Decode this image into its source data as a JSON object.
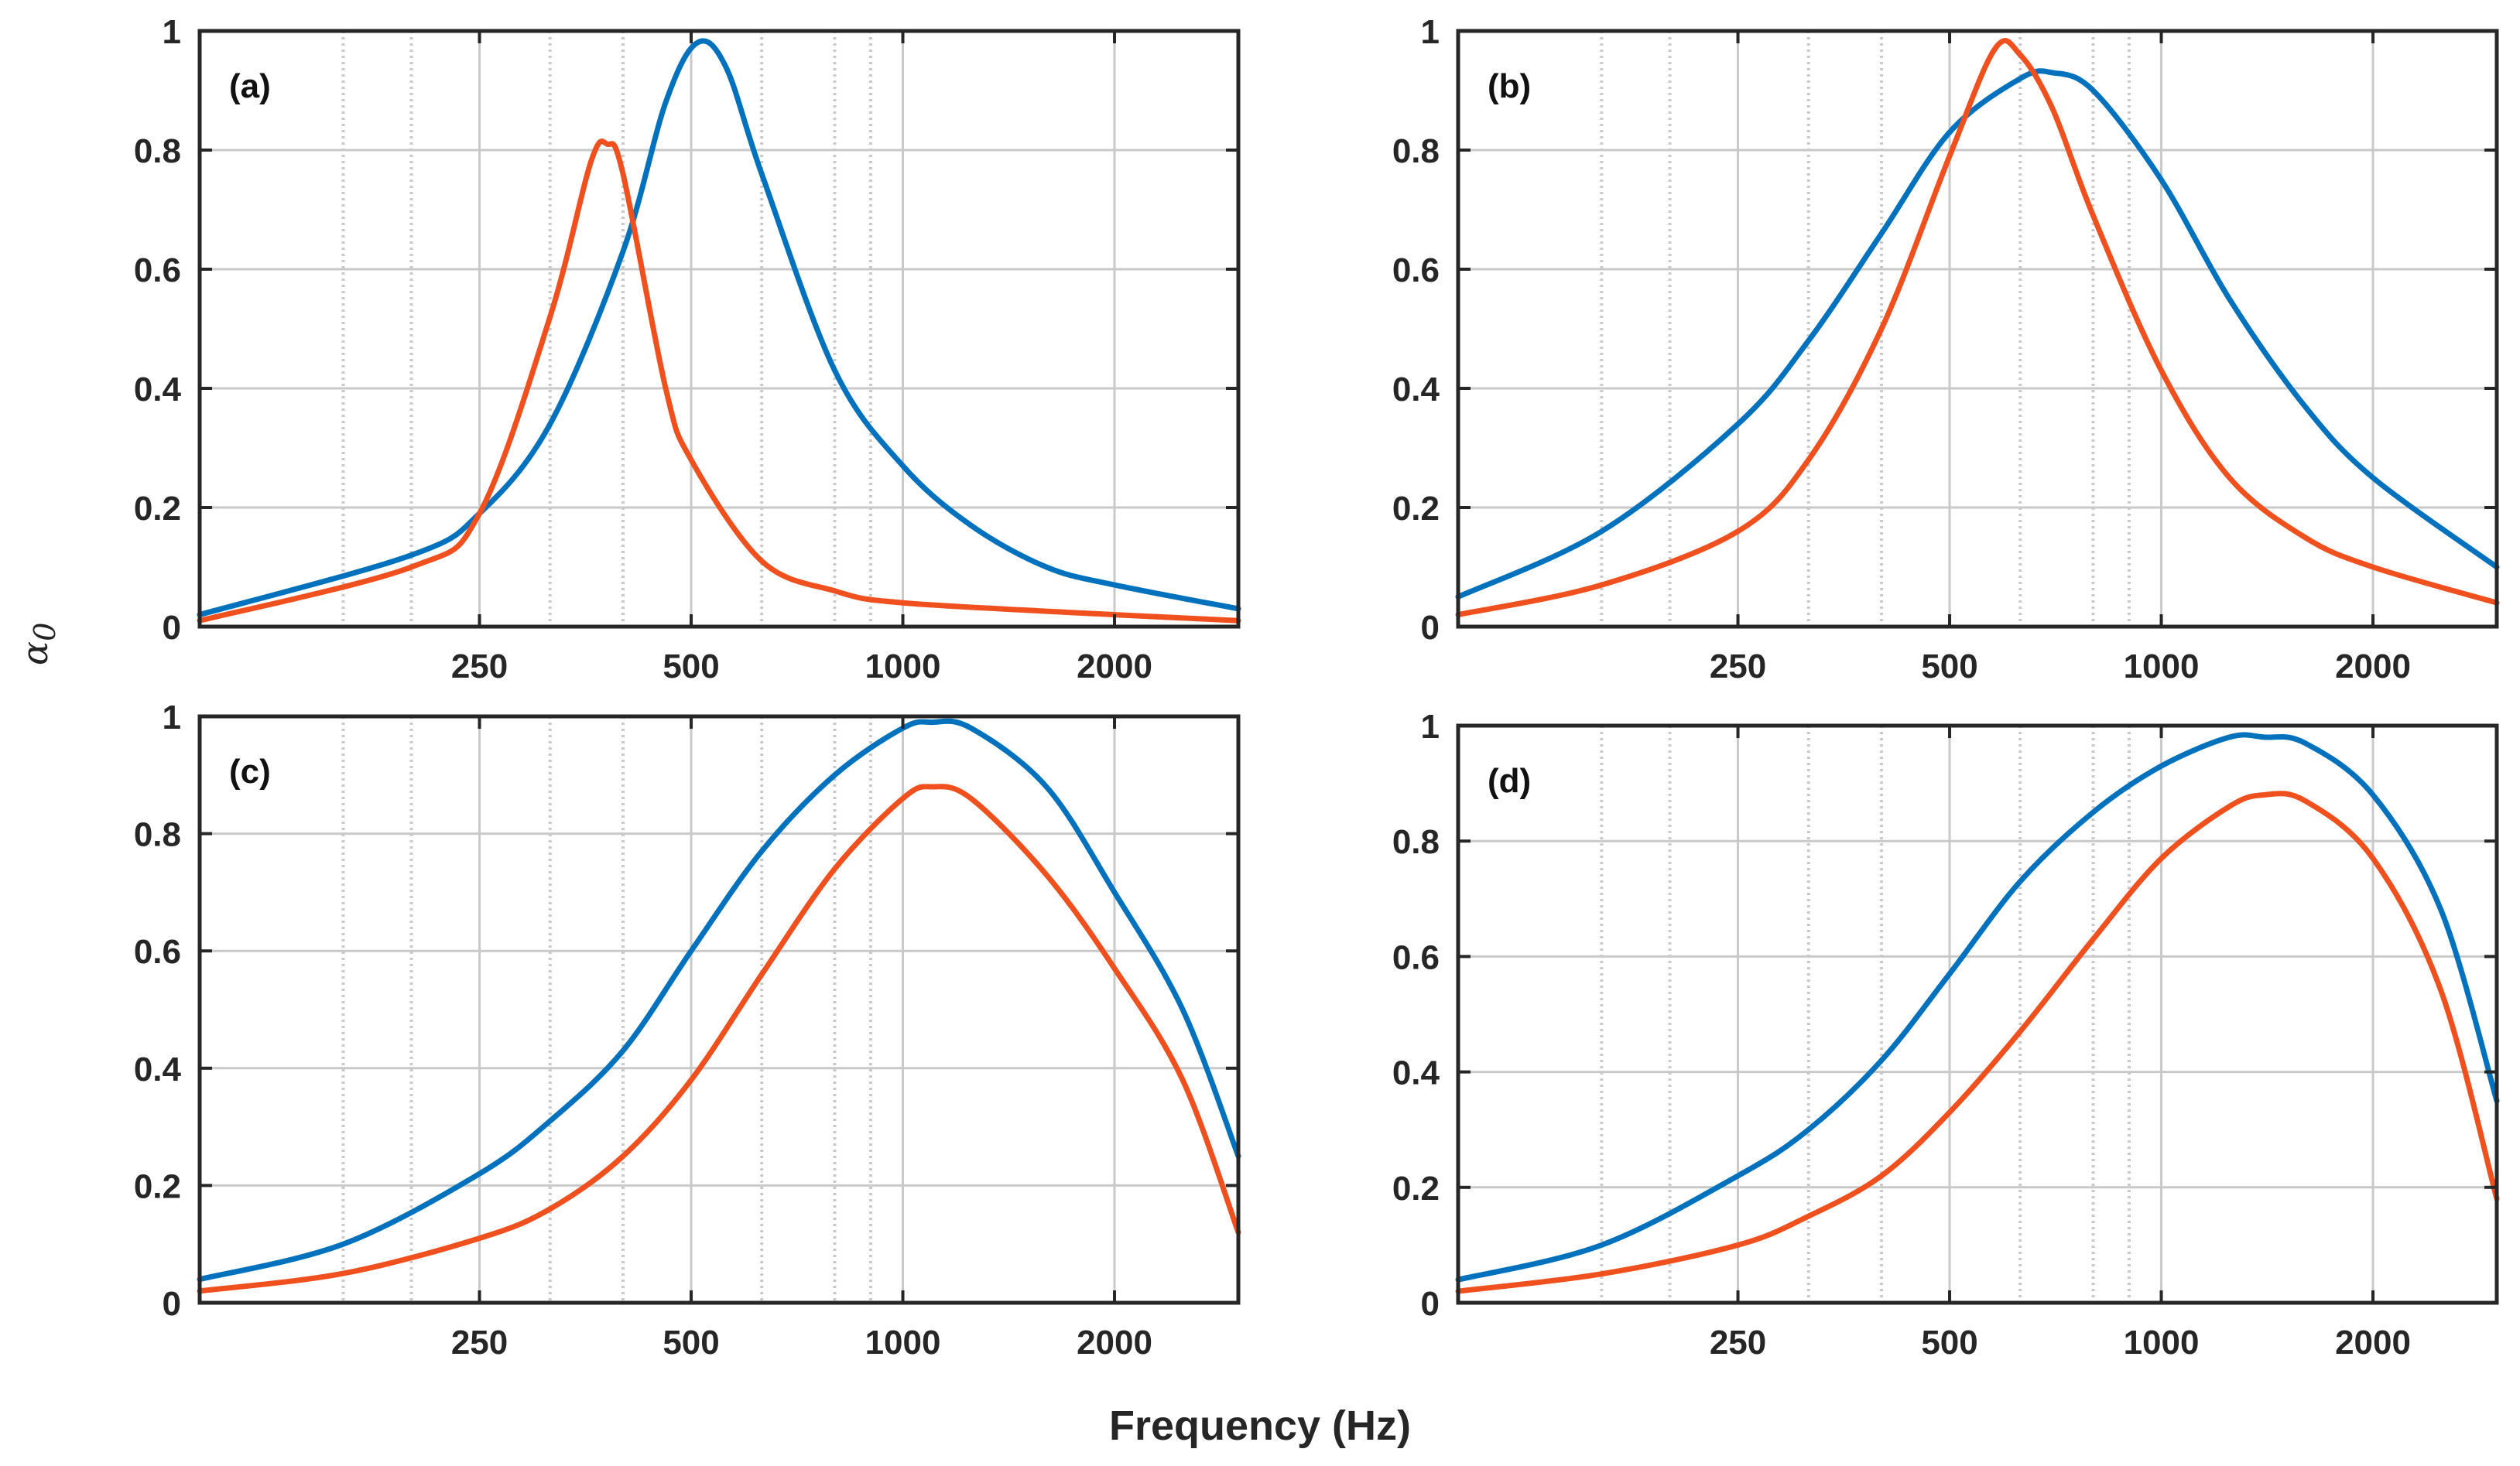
{
  "figure": {
    "xlabel": "Frequency (Hz)",
    "ylabel_symbol": "α",
    "ylabel_subscript": "0"
  },
  "colors": {
    "series1": "#0072BD",
    "series2": "#F0501E",
    "grid": "#c9c9c9",
    "axis": "#262626"
  },
  "chart_data": [
    {
      "type": "line",
      "panel_label": "(a)",
      "xscale": "log",
      "xlim": [
        100,
        3000
      ],
      "ylim": [
        0,
        1
      ],
      "xticks": [
        250,
        500,
        1000,
        2000
      ],
      "yticks": [
        0,
        0.2,
        0.4,
        0.6,
        0.8,
        1
      ],
      "minor_gridlines": [
        160,
        200,
        315,
        400,
        630,
        800,
        900
      ],
      "series": [
        {
          "name": "blue",
          "x": [
            100,
            200,
            250,
            315,
            400,
            460,
            510,
            560,
            630,
            800,
            1000,
            1250,
            1600,
            2000,
            3000
          ],
          "y": [
            0.02,
            0.12,
            0.19,
            0.34,
            0.63,
            0.88,
            0.98,
            0.94,
            0.76,
            0.43,
            0.27,
            0.17,
            0.1,
            0.07,
            0.03
          ]
        },
        {
          "name": "orange",
          "x": [
            100,
            200,
            250,
            315,
            360,
            380,
            400,
            460,
            500,
            630,
            800,
            1000,
            2000,
            3000
          ],
          "y": [
            0.01,
            0.1,
            0.19,
            0.52,
            0.78,
            0.81,
            0.76,
            0.4,
            0.28,
            0.11,
            0.06,
            0.04,
            0.02,
            0.01
          ]
        }
      ]
    },
    {
      "type": "line",
      "panel_label": "(b)",
      "xscale": "log",
      "xlim": [
        100,
        3000
      ],
      "ylim": [
        0,
        1
      ],
      "xticks": [
        250,
        500,
        1000,
        2000
      ],
      "yticks": [
        0,
        0.2,
        0.4,
        0.6,
        0.8,
        1
      ],
      "minor_gridlines": [
        160,
        200,
        315,
        400,
        630,
        800,
        900
      ],
      "series": [
        {
          "name": "blue",
          "x": [
            100,
            160,
            250,
            315,
            400,
            500,
            630,
            700,
            800,
            1000,
            1250,
            1600,
            2000,
            3000
          ],
          "y": [
            0.05,
            0.16,
            0.34,
            0.48,
            0.66,
            0.83,
            0.92,
            0.93,
            0.9,
            0.75,
            0.55,
            0.37,
            0.25,
            0.1
          ]
        },
        {
          "name": "orange",
          "x": [
            100,
            160,
            250,
            315,
            400,
            500,
            580,
            630,
            700,
            800,
            1000,
            1250,
            1600,
            2000,
            3000
          ],
          "y": [
            0.02,
            0.07,
            0.16,
            0.28,
            0.5,
            0.79,
            0.97,
            0.96,
            0.87,
            0.69,
            0.43,
            0.25,
            0.15,
            0.1,
            0.04
          ]
        }
      ]
    },
    {
      "type": "line",
      "panel_label": "(c)",
      "xscale": "log",
      "xlim": [
        100,
        3000
      ],
      "ylim": [
        0,
        1
      ],
      "xticks": [
        250,
        500,
        1000,
        2000
      ],
      "yticks": [
        0,
        0.2,
        0.4,
        0.6,
        0.8,
        1
      ],
      "minor_gridlines": [
        160,
        200,
        315,
        400,
        630,
        800,
        900
      ],
      "series": [
        {
          "name": "blue",
          "x": [
            100,
            160,
            250,
            315,
            400,
            500,
            630,
            800,
            1000,
            1100,
            1250,
            1600,
            2000,
            2500,
            3000
          ],
          "y": [
            0.04,
            0.1,
            0.22,
            0.31,
            0.43,
            0.6,
            0.77,
            0.9,
            0.98,
            0.99,
            0.98,
            0.88,
            0.7,
            0.5,
            0.25
          ]
        },
        {
          "name": "orange",
          "x": [
            100,
            160,
            250,
            315,
            400,
            500,
            630,
            800,
            1000,
            1100,
            1250,
            1600,
            2000,
            2500,
            3000
          ],
          "y": [
            0.02,
            0.05,
            0.11,
            0.16,
            0.25,
            0.38,
            0.56,
            0.74,
            0.86,
            0.88,
            0.86,
            0.73,
            0.57,
            0.38,
            0.12
          ]
        }
      ]
    },
    {
      "type": "line",
      "panel_label": "(d)",
      "xscale": "log",
      "xlim": [
        100,
        3000
      ],
      "ylim": [
        0,
        1
      ],
      "xticks": [
        250,
        500,
        1000,
        2000
      ],
      "yticks": [
        0,
        0.2,
        0.4,
        0.6,
        0.8,
        1
      ],
      "minor_gridlines": [
        160,
        200,
        315,
        400,
        630,
        800,
        900
      ],
      "series": [
        {
          "name": "blue",
          "x": [
            100,
            160,
            250,
            315,
            400,
            500,
            630,
            800,
            1000,
            1250,
            1400,
            1600,
            2000,
            2500,
            3000
          ],
          "y": [
            0.04,
            0.1,
            0.22,
            0.3,
            0.42,
            0.57,
            0.73,
            0.85,
            0.93,
            0.98,
            0.98,
            0.97,
            0.88,
            0.68,
            0.35
          ]
        },
        {
          "name": "orange",
          "x": [
            100,
            160,
            250,
            315,
            400,
            500,
            630,
            800,
            1000,
            1250,
            1400,
            1600,
            2000,
            2500,
            3000
          ],
          "y": [
            0.02,
            0.05,
            0.1,
            0.15,
            0.22,
            0.33,
            0.47,
            0.63,
            0.77,
            0.86,
            0.88,
            0.87,
            0.77,
            0.54,
            0.18
          ]
        }
      ]
    }
  ]
}
